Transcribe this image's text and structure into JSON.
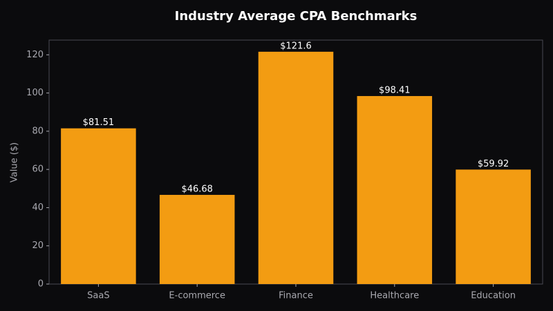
{
  "chart_data": {
    "type": "bar",
    "title": "Industry Average CPA Benchmarks",
    "y_label": "Value ($)",
    "categories": [
      "SaaS",
      "E-commerce",
      "Finance",
      "Healthcare",
      "Education"
    ],
    "values": [
      81.51,
      46.68,
      121.6,
      98.41,
      59.92
    ],
    "value_labels": [
      "$81.51",
      "$46.68",
      "$121.6",
      "$98.41",
      "$59.92"
    ],
    "color": "#f39c12",
    "ylim": [
      0,
      127.7
    ],
    "yticks": [
      0,
      20,
      40,
      60,
      80,
      100,
      120
    ],
    "grid": false
  }
}
